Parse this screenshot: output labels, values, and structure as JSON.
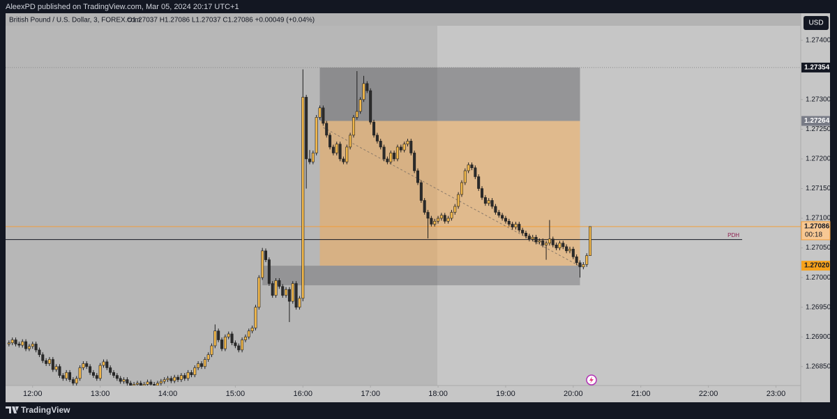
{
  "header": {
    "author_line": "AleexPD published on TradingView.com, Mar 05, 2024 20:17 UTC+1",
    "symbol": "British Pound / U.S. Dollar, 3, FOREX.com",
    "ohlc_line": "O1.27037 H1.27086 L1.27037 C1.27086 +0.00049 (+0.04%)",
    "currency": "USD"
  },
  "footer": {
    "brand": "TradingView"
  },
  "chart_data": {
    "type": "candlestick",
    "up_color": "#f2b84b",
    "down_color": "#2b2b2b",
    "wick_color": "#1e1e1e",
    "x": [
      "11:39",
      "11:42",
      "11:45",
      "11:48",
      "11:51",
      "11:54",
      "11:57",
      "12:00",
      "12:03",
      "12:06",
      "12:09",
      "12:12",
      "12:15",
      "12:18",
      "12:21",
      "12:24",
      "12:27",
      "12:30",
      "12:33",
      "12:36",
      "12:39",
      "12:42",
      "12:45",
      "12:48",
      "12:51",
      "12:54",
      "12:57",
      "13:00",
      "13:03",
      "13:06",
      "13:09",
      "13:12",
      "13:15",
      "13:18",
      "13:21",
      "13:24",
      "13:27",
      "13:30",
      "13:33",
      "13:36",
      "13:39",
      "13:42",
      "13:45",
      "13:48",
      "13:51",
      "13:54",
      "13:57",
      "14:00",
      "14:03",
      "14:06",
      "14:09",
      "14:12",
      "14:15",
      "14:18",
      "14:21",
      "14:24",
      "14:27",
      "14:30",
      "14:33",
      "14:36",
      "14:39",
      "14:42",
      "14:45",
      "14:48",
      "14:51",
      "14:54",
      "14:57",
      "15:00",
      "15:03",
      "15:06",
      "15:09",
      "15:12",
      "15:15",
      "15:18",
      "15:21",
      "15:24",
      "15:27",
      "15:30",
      "15:33",
      "15:36",
      "15:39",
      "15:42",
      "15:45",
      "15:48",
      "15:51",
      "15:54",
      "15:57",
      "16:00",
      "16:03",
      "16:06",
      "16:09",
      "16:12",
      "16:15",
      "16:18",
      "16:21",
      "16:24",
      "16:27",
      "16:30",
      "16:33",
      "16:36",
      "16:39",
      "16:42",
      "16:45",
      "16:48",
      "16:51",
      "16:54",
      "16:57",
      "17:00",
      "17:03",
      "17:06",
      "17:09",
      "17:12",
      "17:15",
      "17:18",
      "17:21",
      "17:24",
      "17:27",
      "17:30",
      "17:33",
      "17:36",
      "17:39",
      "17:42",
      "17:45",
      "17:48",
      "17:51",
      "17:54",
      "17:57",
      "18:00",
      "18:03",
      "18:06",
      "18:09",
      "18:12",
      "18:15",
      "18:18",
      "18:21",
      "18:24",
      "18:27",
      "18:30",
      "18:33",
      "18:36",
      "18:39",
      "18:42",
      "18:45",
      "18:48",
      "18:51",
      "18:54",
      "18:57",
      "19:00",
      "19:03",
      "19:06",
      "19:09",
      "19:12",
      "19:15",
      "19:18",
      "19:21",
      "19:24",
      "19:27",
      "19:30",
      "19:33",
      "19:36",
      "19:39",
      "19:42",
      "19:45",
      "19:48",
      "19:51",
      "19:54",
      "19:57",
      "20:00",
      "20:03",
      "20:06",
      "20:09",
      "20:12",
      "20:15"
    ],
    "open": [
      1.26888,
      1.2689,
      1.26895,
      1.26888,
      1.26886,
      1.26892,
      1.2688,
      1.26884,
      1.26888,
      1.26878,
      1.2687,
      1.2686,
      1.26855,
      1.26862,
      1.26845,
      1.2685,
      1.26835,
      1.2683,
      1.2684,
      1.26828,
      1.26822,
      1.2683,
      1.26848,
      1.26855,
      1.2685,
      1.2684,
      1.26835,
      1.2683,
      1.26852,
      1.26858,
      1.26848,
      1.2684,
      1.26835,
      1.2683,
      1.26825,
      1.26828,
      1.26822,
      1.26818,
      1.2682,
      1.26822,
      1.26818,
      1.2682,
      1.26824,
      1.2682,
      1.26818,
      1.26822,
      1.26825,
      1.26828,
      1.2683,
      1.26826,
      1.26832,
      1.26828,
      1.26835,
      1.2683,
      1.2684,
      1.26836,
      1.26848,
      1.26855,
      1.2685,
      1.26862,
      1.2687,
      1.26885,
      1.2691,
      1.26895,
      1.2688,
      1.269,
      1.26905,
      1.2689,
      1.26885,
      1.26878,
      1.26895,
      1.269,
      1.2691,
      1.26915,
      1.2695,
      1.27,
      1.27045,
      1.2703,
      1.2699,
      1.2697,
      1.26995,
      1.26985,
      1.2697,
      1.2698,
      1.2696,
      1.2699,
      1.2695,
      1.26965,
      1.27304,
      1.272,
      1.27195,
      1.2721,
      1.2727,
      1.27286,
      1.2726,
      1.2724,
      1.2722,
      1.2721,
      1.27225,
      1.272,
      1.27195,
      1.2722,
      1.2724,
      1.2727,
      1.2728,
      1.273,
      1.27327,
      1.27315,
      1.27262,
      1.2724,
      1.2723,
      1.2722,
      1.272,
      1.27195,
      1.2721,
      1.272,
      1.2722,
      1.27215,
      1.27225,
      1.2723,
      1.2721,
      1.2718,
      1.2716,
      1.2713,
      1.2711,
      1.271,
      1.2709,
      1.27095,
      1.271,
      1.27105,
      1.27095,
      1.271,
      1.2711,
      1.2712,
      1.2714,
      1.2716,
      1.2718,
      1.2719,
      1.27185,
      1.2717,
      1.2715,
      1.27135,
      1.27125,
      1.2713,
      1.2712,
      1.2711,
      1.27105,
      1.271,
      1.27095,
      1.2709,
      1.27085,
      1.2709,
      1.2708,
      1.27075,
      1.2707,
      1.27065,
      1.27068,
      1.2706,
      1.27062,
      1.27055,
      1.27058,
      1.27065,
      1.27055,
      1.2705,
      1.27058,
      1.27052,
      1.27045,
      1.27048,
      1.27035,
      1.27025,
      1.27018,
      1.27022,
      1.27037
    ],
    "high": [
      1.26894,
      1.26899,
      1.26899,
      1.26892,
      1.26896,
      1.26896,
      1.26888,
      1.26892,
      1.26892,
      1.26882,
      1.26874,
      1.26864,
      1.26866,
      1.26866,
      1.26854,
      1.26854,
      1.26839,
      1.26844,
      1.26844,
      1.26832,
      1.26834,
      1.26852,
      1.26859,
      1.26859,
      1.26854,
      1.26844,
      1.26839,
      1.26856,
      1.26862,
      1.26862,
      1.26852,
      1.26844,
      1.26839,
      1.26834,
      1.26832,
      1.26832,
      1.26826,
      1.26824,
      1.26826,
      1.26826,
      1.26824,
      1.26828,
      1.26828,
      1.26824,
      1.26826,
      1.26829,
      1.26832,
      1.26834,
      1.26834,
      1.26836,
      1.26836,
      1.26839,
      1.26839,
      1.26844,
      1.26844,
      1.26852,
      1.26859,
      1.26859,
      1.26866,
      1.26874,
      1.26889,
      1.26921,
      1.26914,
      1.26899,
      1.26904,
      1.26909,
      1.26909,
      1.26894,
      1.26889,
      1.26899,
      1.26904,
      1.26914,
      1.26919,
      1.26954,
      1.27004,
      1.2705,
      1.27049,
      1.27034,
      1.26994,
      1.26999,
      1.26999,
      1.26989,
      1.26984,
      1.26984,
      1.26994,
      1.26994,
      1.26969,
      1.27351,
      1.27308,
      1.27215,
      1.27214,
      1.27274,
      1.2729,
      1.2729,
      1.27264,
      1.27244,
      1.27224,
      1.27229,
      1.27229,
      1.27204,
      1.27224,
      1.27244,
      1.27274,
      1.27348,
      1.27304,
      1.2734,
      1.27331,
      1.27319,
      1.27266,
      1.27244,
      1.27234,
      1.27224,
      1.27204,
      1.27214,
      1.27214,
      1.27224,
      1.27224,
      1.27229,
      1.27234,
      1.27234,
      1.27214,
      1.27184,
      1.27164,
      1.27134,
      1.27114,
      1.27104,
      1.27099,
      1.27104,
      1.27109,
      1.27109,
      1.27104,
      1.27114,
      1.27124,
      1.27144,
      1.27164,
      1.27184,
      1.27194,
      1.27194,
      1.27189,
      1.27174,
      1.27154,
      1.27139,
      1.27134,
      1.27134,
      1.27124,
      1.27114,
      1.27109,
      1.27104,
      1.27099,
      1.27094,
      1.27094,
      1.27094,
      1.27084,
      1.27079,
      1.27074,
      1.27072,
      1.27072,
      1.27066,
      1.27066,
      1.27062,
      1.27097,
      1.27069,
      1.27059,
      1.27062,
      1.27062,
      1.27056,
      1.27052,
      1.27052,
      1.27039,
      1.27029,
      1.27026,
      1.27041,
      1.27086
    ],
    "low": [
      1.26884,
      1.26886,
      1.26884,
      1.26882,
      1.26882,
      1.26876,
      1.26876,
      1.2688,
      1.26874,
      1.26866,
      1.26856,
      1.26851,
      1.26851,
      1.26841,
      1.26841,
      1.26831,
      1.26826,
      1.26826,
      1.26824,
      1.26818,
      1.26818,
      1.26826,
      1.26844,
      1.26846,
      1.26836,
      1.26831,
      1.26826,
      1.26826,
      1.26848,
      1.26844,
      1.26836,
      1.26831,
      1.26826,
      1.26821,
      1.26821,
      1.26818,
      1.26814,
      1.26814,
      1.26816,
      1.26814,
      1.26814,
      1.26816,
      1.26816,
      1.26814,
      1.26814,
      1.26818,
      1.26821,
      1.26824,
      1.26822,
      1.26822,
      1.26824,
      1.26824,
      1.26826,
      1.26826,
      1.26832,
      1.26832,
      1.26844,
      1.26846,
      1.26846,
      1.26858,
      1.26866,
      1.26881,
      1.26891,
      1.26876,
      1.26876,
      1.26896,
      1.26886,
      1.26881,
      1.26874,
      1.26874,
      1.26891,
      1.26896,
      1.26906,
      1.26911,
      1.26946,
      1.26996,
      1.27026,
      1.26986,
      1.26966,
      1.26966,
      1.26981,
      1.26966,
      1.26966,
      1.26925,
      1.26956,
      1.26946,
      1.26946,
      1.2696,
      1.2715,
      1.27191,
      1.27191,
      1.27206,
      1.27266,
      1.27256,
      1.27236,
      1.27216,
      1.27206,
      1.27206,
      1.27196,
      1.27191,
      1.27191,
      1.27216,
      1.27236,
      1.27266,
      1.27276,
      1.27296,
      1.27311,
      1.27258,
      1.27236,
      1.27226,
      1.27216,
      1.27196,
      1.27191,
      1.27191,
      1.27196,
      1.27196,
      1.27211,
      1.27211,
      1.27221,
      1.27206,
      1.27176,
      1.27156,
      1.27126,
      1.27106,
      1.27066,
      1.27086,
      1.27086,
      1.27091,
      1.27096,
      1.27091,
      1.27091,
      1.27096,
      1.27106,
      1.27116,
      1.27136,
      1.27156,
      1.27176,
      1.27181,
      1.27166,
      1.27146,
      1.27131,
      1.27121,
      1.27121,
      1.27116,
      1.27106,
      1.27101,
      1.27096,
      1.27091,
      1.27086,
      1.27081,
      1.27081,
      1.27076,
      1.27071,
      1.27066,
      1.27061,
      1.27061,
      1.27056,
      1.27056,
      1.27051,
      1.2703,
      1.27054,
      1.27051,
      1.27046,
      1.27046,
      1.27048,
      1.27041,
      1.27041,
      1.27031,
      1.27021,
      1.27,
      1.27014,
      1.27018,
      1.27037
    ],
    "close": [
      1.2689,
      1.26895,
      1.26888,
      1.26886,
      1.26892,
      1.2688,
      1.26884,
      1.26888,
      1.26878,
      1.2687,
      1.2686,
      1.26855,
      1.26862,
      1.26845,
      1.2685,
      1.26835,
      1.2683,
      1.2684,
      1.26828,
      1.26822,
      1.2683,
      1.26848,
      1.26855,
      1.2685,
      1.2684,
      1.26835,
      1.2683,
      1.26852,
      1.26858,
      1.26848,
      1.2684,
      1.26835,
      1.2683,
      1.26825,
      1.26828,
      1.26822,
      1.26818,
      1.2682,
      1.26822,
      1.26818,
      1.2682,
      1.26824,
      1.2682,
      1.26818,
      1.26822,
      1.26825,
      1.26828,
      1.2683,
      1.26826,
      1.26832,
      1.26828,
      1.26835,
      1.2683,
      1.2684,
      1.26836,
      1.26848,
      1.26855,
      1.2685,
      1.26862,
      1.2687,
      1.26885,
      1.2691,
      1.26895,
      1.2688,
      1.269,
      1.26905,
      1.2689,
      1.26885,
      1.26878,
      1.26895,
      1.269,
      1.2691,
      1.26915,
      1.2695,
      1.27,
      1.27045,
      1.2703,
      1.2699,
      1.2697,
      1.26995,
      1.26985,
      1.2697,
      1.2698,
      1.2696,
      1.2699,
      1.2695,
      1.26965,
      1.27304,
      1.272,
      1.27195,
      1.2721,
      1.2727,
      1.27286,
      1.2726,
      1.2724,
      1.2722,
      1.2721,
      1.27225,
      1.272,
      1.27195,
      1.2722,
      1.2724,
      1.2727,
      1.2728,
      1.273,
      1.27327,
      1.27315,
      1.27262,
      1.2724,
      1.2723,
      1.2722,
      1.272,
      1.27195,
      1.2721,
      1.272,
      1.2722,
      1.27215,
      1.27225,
      1.2723,
      1.2721,
      1.2718,
      1.2716,
      1.2713,
      1.2711,
      1.271,
      1.2709,
      1.27095,
      1.271,
      1.27105,
      1.27095,
      1.271,
      1.2711,
      1.2712,
      1.2714,
      1.2716,
      1.2718,
      1.2719,
      1.27185,
      1.2717,
      1.2715,
      1.27135,
      1.27125,
      1.2713,
      1.2712,
      1.2711,
      1.27105,
      1.271,
      1.27095,
      1.2709,
      1.27085,
      1.2709,
      1.2708,
      1.27075,
      1.2707,
      1.27065,
      1.27068,
      1.2706,
      1.27062,
      1.27055,
      1.27058,
      1.27065,
      1.27055,
      1.2705,
      1.27058,
      1.27052,
      1.27045,
      1.27048,
      1.27035,
      1.27025,
      1.27018,
      1.27022,
      1.27037,
      1.27086
    ],
    "xlim": [
      "11:36",
      "23:22"
    ],
    "xticks": [
      "12:00",
      "13:00",
      "14:00",
      "15:00",
      "16:00",
      "17:00",
      "18:00",
      "19:00",
      "20:00",
      "21:00",
      "22:00",
      "23:00"
    ],
    "ylim": [
      1.26818,
      1.27442
    ],
    "yticks": [
      {
        "value": 1.274,
        "label": "1.27400"
      },
      {
        "value": 1.273,
        "label": "1.27300"
      },
      {
        "value": 1.2725,
        "label": "1.27250"
      },
      {
        "value": 1.272,
        "label": "1.27200"
      },
      {
        "value": 1.2715,
        "label": "1.27150"
      },
      {
        "value": 1.271,
        "label": "1.27100"
      },
      {
        "value": 1.2705,
        "label": "1.27050"
      },
      {
        "value": 1.27,
        "label": "1.27000"
      },
      {
        "value": 1.2695,
        "label": "1.26950"
      },
      {
        "value": 1.269,
        "label": "1.26900"
      },
      {
        "value": 1.2685,
        "label": "1.26850"
      }
    ],
    "price_labels": [
      1.27354,
      1.27264,
      1.27086,
      {
        "value": 1.2702,
        "label": "1.27020"
      }
    ],
    "price_label_colors": [
      "#131722",
      "#787b86",
      "#f7c894",
      "#f7a21b"
    ],
    "price_label_text_colors": [
      "#ffffff",
      "#ffffff",
      "#131722",
      "#131722"
    ],
    "price_line_styles": [
      "dotted",
      "none",
      "solid",
      "none"
    ],
    "price_line_colors": [
      "#8a8a8a",
      "none",
      "#f29d38",
      "none"
    ],
    "countdown": "00:18",
    "zones": [
      {
        "from": "16:15",
        "to": "20:06",
        "top": 1.27354,
        "bottom": 1.27264,
        "color": "rgba(70,70,75,0.38)"
      },
      {
        "from": "16:15",
        "to": "20:06",
        "top": 1.27264,
        "bottom": 1.2702,
        "color": "rgba(255,170,70,0.45)"
      },
      {
        "from": "15:24",
        "to": "20:06",
        "top": 1.2702,
        "bottom": 1.26987,
        "color": "rgba(70,70,75,0.30)"
      }
    ],
    "trend_line": {
      "from": "16:18",
      "to": "20:06",
      "start": 1.27253,
      "end": 1.27019,
      "color": "#8a7a6a"
    },
    "pdh": {
      "value": 1.27064,
      "label": "PDH",
      "end": "22:30",
      "color": "#131722",
      "label_color": "#8c1d4e"
    }
  }
}
